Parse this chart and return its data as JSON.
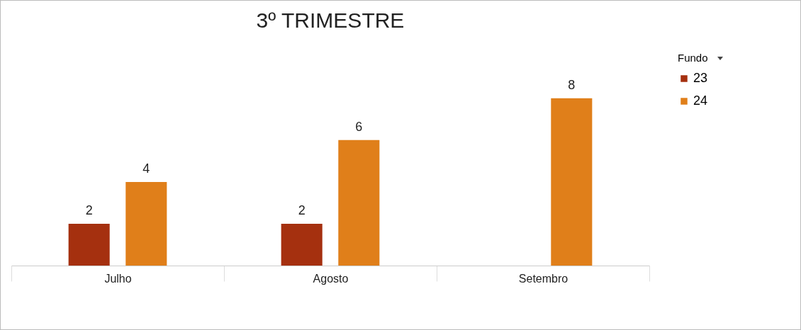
{
  "chart_data": {
    "type": "bar",
    "title": "3º TRIMESTRE",
    "legend_title": "Fundo",
    "legend": "right",
    "data_labels": true,
    "categories": [
      "Julho",
      "Agosto",
      "Setembro"
    ],
    "series": [
      {
        "name": "23",
        "color": "#a5300f",
        "values": [
          2,
          2,
          null
        ]
      },
      {
        "name": "24",
        "color": "#e07f1a",
        "values": [
          4,
          6,
          8
        ]
      }
    ]
  }
}
